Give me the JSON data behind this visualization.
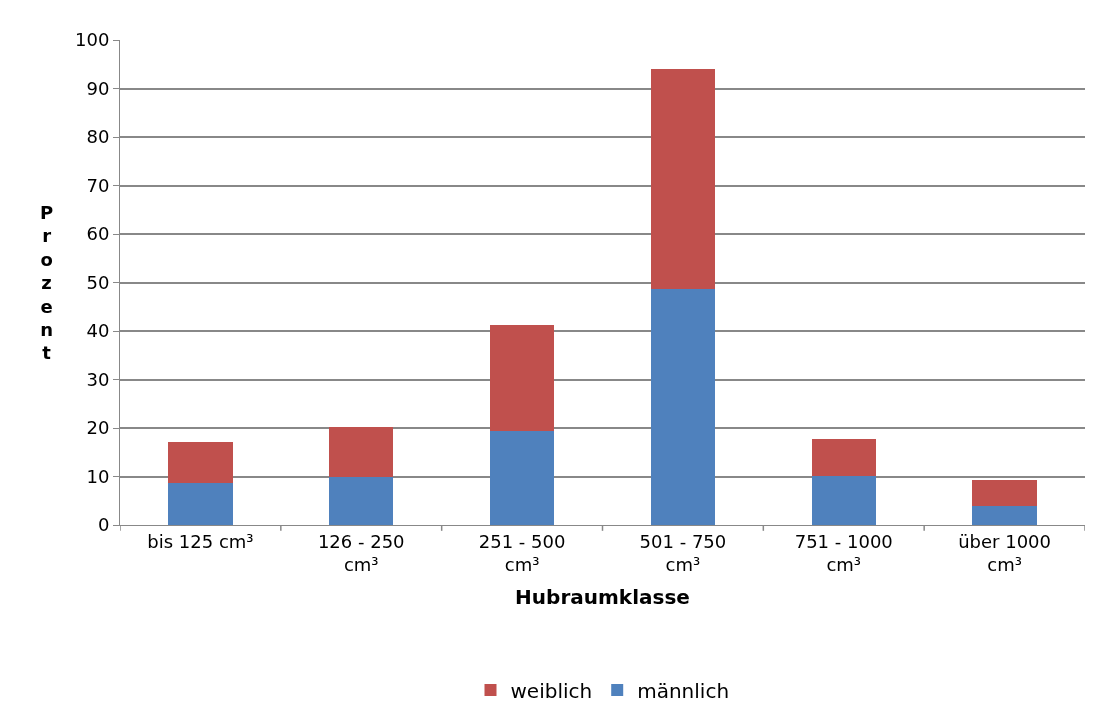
{
  "chart_data": {
    "type": "bar",
    "stacked": true,
    "xlabel": "Hubraumklasse",
    "ylabel": "Prozent",
    "categories": [
      "bis 125 cm³",
      "126 - 250 cm³",
      "251 - 500 cm³",
      "501 - 750 cm³",
      "751 - 1000 cm³",
      "über 1000 cm³"
    ],
    "series": [
      {
        "name": "männlich",
        "color": "#4f81bd",
        "values": [
          8.6,
          9.9,
          19.3,
          48.6,
          10.2,
          3.9
        ]
      },
      {
        "name": "weiblich",
        "color": "#c0504d",
        "values": [
          8.5,
          10.4,
          21.9,
          45.5,
          7.6,
          5.4
        ]
      }
    ],
    "ylim": [
      0,
      100
    ],
    "yticks": [
      0,
      10,
      20,
      30,
      40,
      50,
      60,
      70,
      80,
      90,
      100
    ],
    "grid": "y",
    "legend": "bottom"
  }
}
